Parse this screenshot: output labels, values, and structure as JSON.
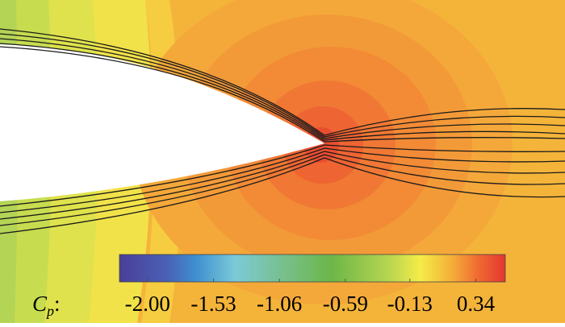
{
  "chart_data": {
    "type": "contour",
    "colorbar": {
      "symbol": "C",
      "subscript": "p",
      "suffix": ":",
      "clim": [
        -2.2,
        0.55
      ],
      "ticks": [
        {
          "value": -2,
          "label": "-2.00"
        },
        -1.53,
        -1.06,
        -0.59,
        -0.13,
        0.34
      ]
    }
  }
}
